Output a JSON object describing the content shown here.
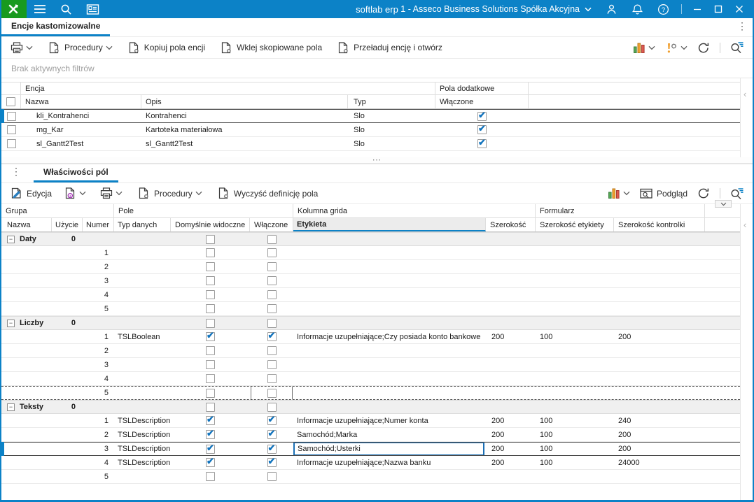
{
  "topbar": {
    "app_title": "softlab erp",
    "company": "1 - Asseco Business Solutions Spółka Akcyjna"
  },
  "glyphs": {
    "kebab": "⋮",
    "collapse_left": "‹",
    "grip": "⋯",
    "minus_box": "−"
  },
  "colors": {
    "titlebar_blue": "#0c82c7",
    "logo_green": "#189a1e",
    "accent_underline": "#0c82c7",
    "check_blue": "#1173bd",
    "info_purple": "#9c27b0",
    "warn_orange": "#f0a030",
    "bar_green": "#55a855",
    "bar_orange": "#f0a030",
    "bar_red": "#e05a50"
  },
  "entities_panel": {
    "tab": "Encje kastomizowalne",
    "toolbar": {
      "procedures": "Procedury",
      "copy_fields": "Kopiuj pola encji",
      "paste_fields": "Wklej skopiowane pola",
      "reload_entity": "Przeładuj encję i otwórz"
    },
    "filter_text": "Brak aktywnych filtrów",
    "grid": {
      "band_encja": "Encja",
      "band_pola": "Pola dodatkowe",
      "col_nazwa": "Nazwa",
      "col_opis": "Opis",
      "col_typ": "Typ",
      "col_wlaczone": "Włączone",
      "rows": [
        {
          "nazwa": "kli_Kontrahenci",
          "opis": "Kontrahenci",
          "typ": "Slo",
          "wlaczone": true,
          "selected": true
        },
        {
          "nazwa": "mg_Kar",
          "opis": "Kartoteka materiałowa",
          "typ": "Slo",
          "wlaczone": true,
          "selected": false
        },
        {
          "nazwa": "sl_Gantt2Test",
          "opis": "sl_Gantt2Test",
          "typ": "Slo",
          "wlaczone": true,
          "selected": false
        }
      ]
    }
  },
  "fields_panel": {
    "tab": "Właściwości pól",
    "toolbar": {
      "edit": "Edycja",
      "procedures": "Procedury",
      "clear_field": "Wyczyść definicję pola",
      "preview": "Podgląd"
    },
    "grid": {
      "bands": [
        "Grupa",
        "Pole",
        "Kolumna grida",
        "Formularz"
      ],
      "columns": {
        "nazwa": "Nazwa",
        "uzycie": "Użycie",
        "numer": "Numer",
        "typ_danych": "Typ danych",
        "dom_widoczne": "Domyślnie widoczne",
        "wlaczone": "Włączone",
        "etykieta": "Etykieta",
        "szerokosc": "Szerokość",
        "szer_etykiety": "Szerokość etykiety",
        "szer_kontrolki": "Szerokość kontrolki"
      },
      "groups": [
        {
          "name": "Daty",
          "uzycie": "0",
          "rows": [
            {
              "numer": "1"
            },
            {
              "numer": "2"
            },
            {
              "numer": "3"
            },
            {
              "numer": "4"
            },
            {
              "numer": "5"
            }
          ]
        },
        {
          "name": "Liczby",
          "uzycie": "0",
          "rows": [
            {
              "numer": "1",
              "typ_danych": "TSLBoolean",
              "dom_widoczne": true,
              "wlaczone": true,
              "etykieta": "Informacje uzupełniające;Czy posiada konto bankowe",
              "szerokosc": "200",
              "szer_etykiety": "100",
              "szer_kontrolki": "200"
            },
            {
              "numer": "2"
            },
            {
              "numer": "3"
            },
            {
              "numer": "4"
            },
            {
              "numer": "5",
              "drop_target": true
            }
          ]
        },
        {
          "name": "Teksty",
          "uzycie": "0",
          "rows": [
            {
              "numer": "1",
              "typ_danych": "TSLDescription",
              "dom_widoczne": true,
              "wlaczone": true,
              "etykieta": "Informacje uzupełniające;Numer konta",
              "szerokosc": "200",
              "szer_etykiety": "100",
              "szer_kontrolki": "240"
            },
            {
              "numer": "2",
              "typ_danych": "TSLDescription",
              "dom_widoczne": true,
              "wlaczone": true,
              "etykieta": "Samochód;Marka",
              "szerokosc": "200",
              "szer_etykiety": "100",
              "szer_kontrolki": "200"
            },
            {
              "numer": "3",
              "typ_danych": "TSLDescription",
              "dom_widoczne": true,
              "wlaczone": true,
              "etykieta": "Samochód;Usterki",
              "szerokosc": "200",
              "szer_etykiety": "100",
              "szer_kontrolki": "200",
              "selected": true,
              "editing": true
            },
            {
              "numer": "4",
              "typ_danych": "TSLDescription",
              "dom_widoczne": true,
              "wlaczone": true,
              "etykieta": "Informacje uzupełniające;Nazwa banku",
              "szerokosc": "200",
              "szer_etykiety": "100",
              "szer_kontrolki": "24000"
            },
            {
              "numer": "5"
            }
          ]
        }
      ]
    }
  }
}
